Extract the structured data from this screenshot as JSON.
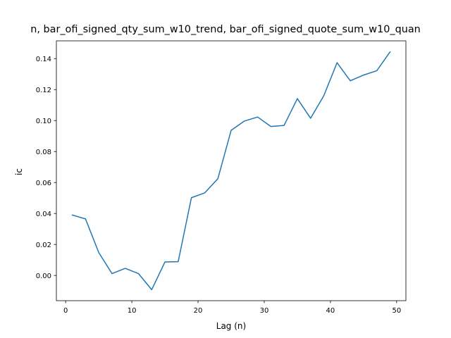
{
  "chart_data": {
    "type": "line",
    "title": "n, bar_ofi_signed_qty_sum_w10_trend, bar_ofi_signed_quote_sum_w10_quan",
    "xlabel": "Lag (n)",
    "ylabel": "ic",
    "xlim": [
      -1.4,
      51.4
    ],
    "ylim": [
      -0.0163,
      0.1515
    ],
    "xticks": [
      0,
      10,
      20,
      30,
      40,
      50
    ],
    "yticks": [
      0.0,
      0.02,
      0.04,
      0.06,
      0.08,
      0.1,
      0.12,
      0.14
    ],
    "xtick_labels": [
      "0",
      "10",
      "20",
      "30",
      "40",
      "50"
    ],
    "ytick_labels": [
      "0.00",
      "0.02",
      "0.04",
      "0.06",
      "0.08",
      "0.10",
      "0.12",
      "0.14"
    ],
    "grid": false,
    "series": [
      {
        "color": "#1f77b4",
        "x": [
          1,
          3,
          5,
          7,
          9,
          11,
          13,
          15,
          17,
          19,
          21,
          23,
          25,
          27,
          29,
          31,
          33,
          35,
          37,
          39,
          41,
          43,
          45,
          47,
          49
        ],
        "y": [
          0.039,
          0.0365,
          0.0148,
          0.0012,
          0.0046,
          0.0012,
          -0.0092,
          0.0087,
          0.0089,
          0.0502,
          0.0533,
          0.0625,
          0.0937,
          0.0997,
          0.1023,
          0.0962,
          0.0969,
          0.1142,
          0.1015,
          0.1161,
          0.1374,
          0.1257,
          0.1294,
          0.1322,
          0.1443
        ]
      }
    ]
  }
}
